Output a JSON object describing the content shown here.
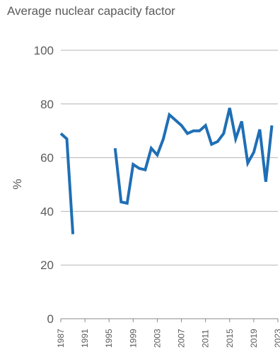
{
  "chart_data": {
    "type": "line",
    "title": "Average nuclear capacity factor",
    "xlabel": "",
    "ylabel": "%",
    "ylim": [
      0,
      100
    ],
    "yticks": [
      0,
      20,
      40,
      60,
      80,
      100
    ],
    "xticks": [
      1987,
      1991,
      1995,
      1999,
      2003,
      2007,
      2011,
      2015,
      2019,
      2023
    ],
    "grid": true,
    "line_color": "#1f6fb5",
    "series": [
      {
        "name": "",
        "points": [
          [
            1987,
            69
          ],
          [
            1988,
            67
          ],
          [
            1989,
            31.5
          ],
          [
            1990,
            null
          ],
          [
            1991,
            null
          ],
          [
            1992,
            null
          ],
          [
            1993,
            null
          ],
          [
            1994,
            null
          ],
          [
            1995,
            null
          ],
          [
            1996,
            63.5
          ],
          [
            1997,
            43.5
          ],
          [
            1998,
            43
          ],
          [
            1999,
            57.5
          ],
          [
            2000,
            56
          ],
          [
            2001,
            55.5
          ],
          [
            2002,
            63.5
          ],
          [
            2003,
            61
          ],
          [
            2004,
            67
          ],
          [
            2005,
            76
          ],
          [
            2006,
            74
          ],
          [
            2007,
            72
          ],
          [
            2008,
            69
          ],
          [
            2009,
            70
          ],
          [
            2010,
            70
          ],
          [
            2011,
            72
          ],
          [
            2012,
            65
          ],
          [
            2013,
            66
          ],
          [
            2014,
            69
          ],
          [
            2015,
            78.5
          ],
          [
            2016,
            67
          ],
          [
            2017,
            73.5
          ],
          [
            2018,
            58
          ],
          [
            2019,
            62
          ],
          [
            2020,
            70.5
          ],
          [
            2021,
            51
          ],
          [
            2022,
            72
          ]
        ]
      }
    ]
  }
}
